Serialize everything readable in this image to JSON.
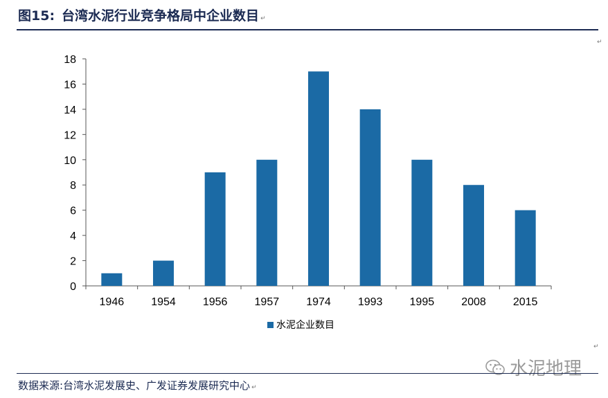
{
  "header": {
    "fig_label": "图15:",
    "title": "台湾水泥行业竞争格局中企业数目",
    "para_mark": "↵"
  },
  "footer": {
    "source": "数据来源:台湾水泥发展史、广发证券发展研究中心",
    "para_mark": "↵",
    "watermark": "水泥地理",
    "watermark_icon": "wechat-icon"
  },
  "colors": {
    "bar": "#1b6aa5",
    "rule": "#1b2a52",
    "axis": "#555555",
    "watermark": "#9a9a9a"
  },
  "chart_data": {
    "type": "bar",
    "categories": [
      "1946",
      "1954",
      "1956",
      "1957",
      "1974",
      "1993",
      "1995",
      "2008",
      "2015"
    ],
    "series": [
      {
        "name": "水泥企业数目",
        "values": [
          1,
          2,
          9,
          10,
          17,
          14,
          10,
          8,
          6
        ]
      }
    ],
    "ylim": [
      0,
      18
    ],
    "yticks": [
      0,
      2,
      4,
      6,
      8,
      10,
      12,
      14,
      16,
      18
    ],
    "xlabel": "",
    "ylabel": "",
    "grid": false,
    "legend_position": "bottom-center"
  }
}
